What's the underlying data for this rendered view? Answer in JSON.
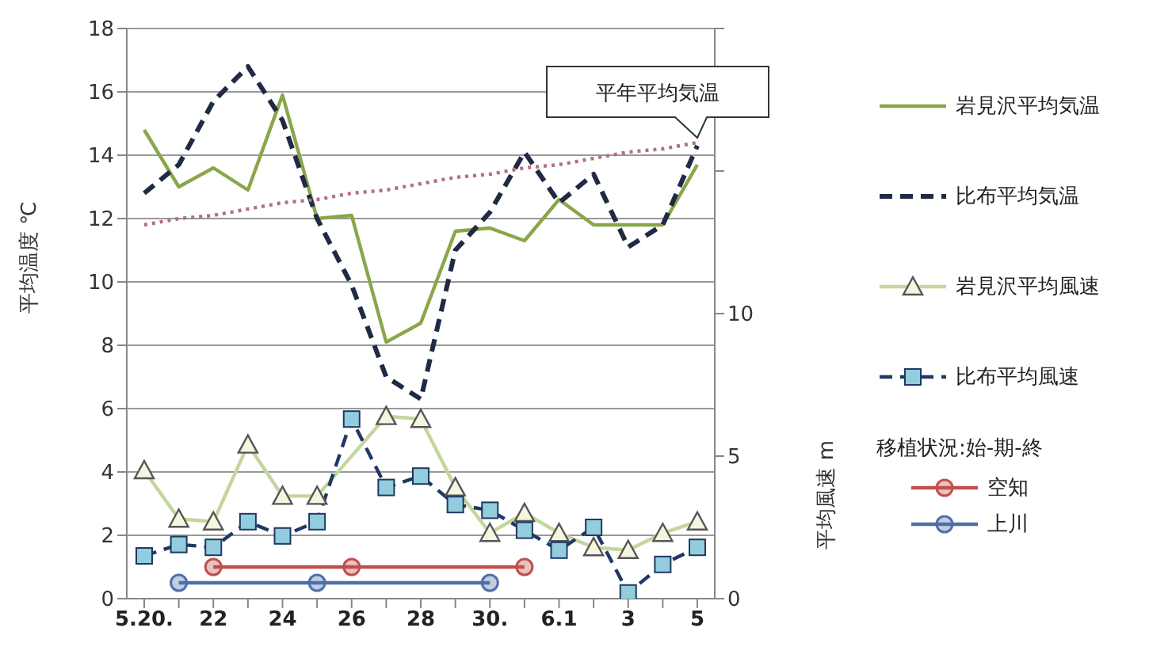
{
  "chart_data": {
    "type": "line",
    "ylabel": "平均温度 ℃",
    "y2label": "平均風速 m",
    "legend_title": "移植状況:始-期-終",
    "categories": [
      "5.20.",
      null,
      "22",
      null,
      "24",
      null,
      "26",
      null,
      "28",
      null,
      "30.",
      null,
      "6.1",
      null,
      "3",
      null,
      "5"
    ],
    "series": [
      {
        "name": "岩見沢平均気温",
        "color": "#8aa64a",
        "axis": "y",
        "marker": "none",
        "line_style": "solid",
        "values": [
          14.8,
          13.0,
          13.6,
          12.9,
          15.9,
          12.0,
          12.1,
          8.1,
          8.7,
          11.6,
          11.7,
          11.3,
          12.6,
          11.8,
          11.8,
          11.8,
          13.7
        ]
      },
      {
        "name": "比布平均気温",
        "color": "#1f2a44",
        "axis": "y",
        "marker": "none",
        "line_style": "dashed",
        "values": [
          12.8,
          13.7,
          15.7,
          16.8,
          15.1,
          12.0,
          9.9,
          7.0,
          6.3,
          11.0,
          12.2,
          14.1,
          12.5,
          13.4,
          11.1,
          11.8,
          14.3
        ]
      },
      {
        "name": "岩見沢平均風速",
        "color": "#c3d69b",
        "axis": "y2",
        "marker": "triangle",
        "line_style": "solid",
        "values": [
          4.5,
          2.8,
          2.7,
          5.4,
          3.6,
          3.6,
          null,
          6.4,
          6.3,
          3.9,
          2.3,
          3.0,
          2.3,
          1.8,
          1.7,
          2.3,
          2.7
        ]
      },
      {
        "name": "比布平均風速",
        "color": "#1f3864",
        "axis": "y2",
        "marker": "square",
        "line_style": "dashed",
        "values": [
          1.5,
          1.9,
          1.8,
          2.7,
          2.2,
          2.7,
          6.3,
          3.9,
          4.3,
          3.3,
          3.1,
          2.4,
          1.7,
          2.5,
          0.2,
          1.2,
          1.8
        ]
      },
      {
        "color": "#b07080",
        "axis": "y",
        "marker": "none",
        "line_style": "dotted",
        "values": [
          11.8,
          12.0,
          12.1,
          12.3,
          12.5,
          12.6,
          12.8,
          12.9,
          13.1,
          13.3,
          13.4,
          13.6,
          13.7,
          13.9,
          14.1,
          14.2,
          14.4
        ]
      },
      {
        "name": "空知",
        "color": "#c0504d",
        "axis": "y",
        "marker": "circle",
        "line_style": "solid",
        "values": [
          null,
          null,
          1,
          null,
          null,
          null,
          1,
          null,
          null,
          null,
          null,
          1,
          null,
          null,
          null,
          null,
          null
        ]
      },
      {
        "name": "上川",
        "color": "#4f6fa8",
        "axis": "y",
        "marker": "circle",
        "line_style": "solid",
        "values": [
          null,
          0.5,
          null,
          null,
          null,
          0.5,
          null,
          null,
          null,
          null,
          0.5,
          null,
          null,
          null,
          null,
          null,
          null
        ]
      }
    ],
    "annotations": [
      {
        "text": "平年平均気温",
        "x": "5",
        "y": 14.4
      }
    ],
    "ylim": [
      0,
      18
    ],
    "yticks": [
      0,
      2,
      4,
      6,
      8,
      10,
      12,
      14,
      16,
      18
    ],
    "y2lim": [
      0,
      20
    ],
    "y2ticks": [
      0,
      5,
      10,
      {
        "value": 15,
        "label": null
      },
      {
        "value": 20,
        "label": null
      }
    ],
    "grid": "y",
    "legend": "right"
  }
}
